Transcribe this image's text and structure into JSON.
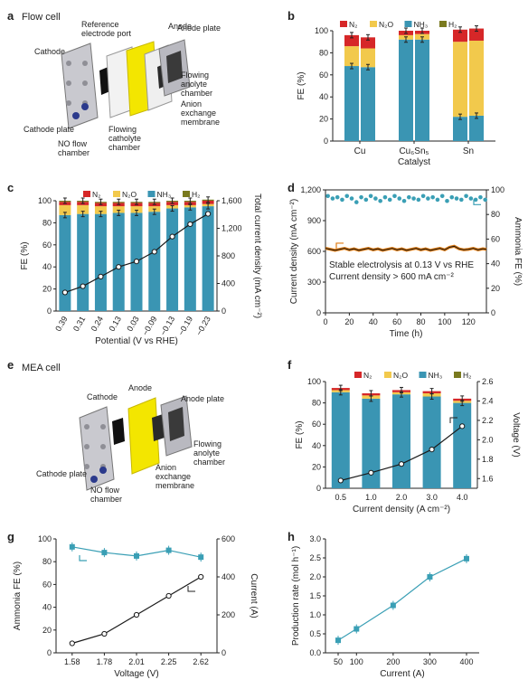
{
  "colors": {
    "n2": "#d62728",
    "n2o": "#f2c94c",
    "nh3": "#3a95b3",
    "h2": "#7a7a1f",
    "line": "#1a1a1a",
    "ammonia_fe": "#3a9fb5",
    "production": "#3a9fb5"
  },
  "panels": {
    "a": {
      "label": "a",
      "title": "Flow cell",
      "callouts": [
        "Reference electrode port",
        "Anode",
        "Anode plate",
        "Cathode",
        "Flowing anolyte chamber",
        "Anion exchange membrane",
        "Cathode plate",
        "NO flow chamber",
        "Flowing catholyte chamber"
      ]
    },
    "b": {
      "label": "b"
    },
    "c": {
      "label": "c"
    },
    "d": {
      "label": "d"
    },
    "e": {
      "label": "e",
      "title": "MEA cell",
      "callouts": [
        "Cathode",
        "Anode",
        "Anode plate",
        "Flowing anolyte chamber",
        "Anion exchange membrane",
        "Cathode plate",
        "NO flow chamber"
      ]
    },
    "f": {
      "label": "f"
    },
    "g": {
      "label": "g"
    },
    "h": {
      "label": "h"
    }
  },
  "legend": {
    "n2": "N₂",
    "n2o": "N₂O",
    "nh3": "NH₃",
    "h2": "H₂"
  },
  "chart_data": [
    {
      "panel": "b",
      "type": "bar",
      "categories": [
        "Cu",
        "Cu₆Sn₅",
        "Sn"
      ],
      "xlabel": "Catalyst",
      "ylabel": "FE (%)",
      "ylim": [
        0,
        100
      ],
      "yticks": [
        0,
        20,
        40,
        60,
        80,
        100
      ],
      "bars_per_category": 2,
      "series": [
        {
          "name": "NH₃",
          "values": [
            [
              68,
              67
            ],
            [
              92,
              92
            ],
            [
              22,
              23
            ]
          ]
        },
        {
          "name": "N₂O",
          "values": [
            [
              18,
              17
            ],
            [
              4,
              5
            ],
            [
              68,
              68
            ]
          ]
        },
        {
          "name": "N₂",
          "values": [
            [
              10,
              10
            ],
            [
              4,
              3
            ],
            [
              11,
              11
            ]
          ]
        },
        {
          "name": "H₂",
          "values": [
            [
              0,
              0
            ],
            [
              0,
              0
            ],
            [
              0,
              0
            ]
          ]
        }
      ]
    },
    {
      "panel": "c",
      "type": "bar",
      "categories": [
        "0.39",
        "0.31",
        "0.24",
        "0.13",
        "0.03",
        "−0.09",
        "−0.13",
        "−0.19",
        "−0.23"
      ],
      "xlabel": "Potential (V vs RHE)",
      "ylabel": "FE (%)",
      "ylabel_right": "Total current density (mA cm⁻²)",
      "ylim": [
        0,
        100
      ],
      "yticks": [
        0,
        20,
        40,
        60,
        80,
        100
      ],
      "ylim_right": [
        0,
        1600
      ],
      "yticks_right": [
        0,
        400,
        800,
        1200,
        1600
      ],
      "series": [
        {
          "name": "NH₃",
          "values": [
            87,
            88,
            88,
            89,
            89,
            90,
            93,
            94,
            95
          ]
        },
        {
          "name": "N₂O",
          "values": [
            9,
            8,
            7,
            6,
            6,
            5,
            3,
            2,
            2
          ]
        },
        {
          "name": "N₂",
          "values": [
            3,
            3,
            3,
            3,
            3,
            3,
            3,
            3,
            3
          ]
        },
        {
          "name": "H₂",
          "values": [
            1,
            1,
            1,
            1,
            1,
            1,
            1,
            1,
            1
          ]
        }
      ],
      "line": {
        "name": "Total current density",
        "values": [
          270,
          360,
          500,
          640,
          720,
          860,
          1080,
          1260,
          1410
        ]
      }
    },
    {
      "panel": "d",
      "type": "scatter",
      "xlabel": "Time (h)",
      "ylabel": "Current density (mA cm⁻²)",
      "ylabel_right": "Ammonia FE (%)",
      "xlim": [
        0,
        135
      ],
      "xticks": [
        0,
        20,
        40,
        60,
        80,
        100,
        120
      ],
      "ylim": [
        0,
        1200
      ],
      "yticks": [
        0,
        300,
        600,
        900,
        1200
      ],
      "ylim_right": [
        0,
        100
      ],
      "yticks_right": [
        0,
        20,
        40,
        60,
        80,
        100
      ],
      "annotations": [
        "Stable electrolysis at 0.13 V vs RHE",
        "Current density > 600 mA cm⁻²"
      ],
      "series": [
        {
          "name": "Ammonia FE",
          "x": [
            2,
            6,
            10,
            14,
            18,
            22,
            26,
            30,
            34,
            38,
            42,
            46,
            50,
            54,
            58,
            62,
            66,
            70,
            74,
            78,
            82,
            86,
            90,
            94,
            98,
            102,
            106,
            110,
            114,
            118,
            122,
            126,
            130,
            134
          ],
          "y": [
            95,
            93,
            94,
            92,
            95,
            93,
            90,
            94,
            92,
            95,
            93,
            91,
            94,
            92,
            95,
            93,
            91,
            94,
            93,
            92,
            95,
            93,
            94,
            92,
            95,
            91,
            94,
            93,
            92,
            95,
            93,
            92,
            94,
            92
          ]
        },
        {
          "name": "Current density",
          "x": [
            0,
            4,
            8,
            12,
            16,
            20,
            24,
            28,
            32,
            36,
            40,
            44,
            48,
            52,
            56,
            60,
            64,
            68,
            72,
            76,
            80,
            84,
            88,
            92,
            96,
            100,
            104,
            108,
            112,
            116,
            120,
            124,
            128,
            132,
            135
          ],
          "y": [
            630,
            620,
            610,
            620,
            630,
            615,
            625,
            610,
            620,
            630,
            615,
            625,
            610,
            620,
            630,
            615,
            625,
            610,
            620,
            630,
            615,
            625,
            610,
            620,
            630,
            615,
            640,
            650,
            625,
            615,
            620,
            630,
            615,
            625,
            620
          ]
        }
      ]
    },
    {
      "panel": "f",
      "type": "bar",
      "categories": [
        "0.5",
        "1.0",
        "2.0",
        "3.0",
        "4.0"
      ],
      "xlabel": "Current density (A cm⁻²)",
      "ylabel": "FE (%)",
      "ylabel_right": "Voltage (V)",
      "ylim": [
        0,
        100
      ],
      "yticks": [
        0,
        20,
        40,
        60,
        80,
        100
      ],
      "ylim_right": [
        1.5,
        2.6
      ],
      "yticks_right": [
        1.6,
        1.8,
        2.0,
        2.2,
        2.4,
        2.6
      ],
      "series": [
        {
          "name": "NH₃",
          "values": [
            90,
            84,
            88,
            86,
            80
          ]
        },
        {
          "name": "N₂O",
          "values": [
            2,
            3,
            2,
            3,
            2
          ]
        },
        {
          "name": "N₂",
          "values": [
            2,
            2,
            2,
            2,
            2
          ]
        },
        {
          "name": "H₂",
          "values": [
            0,
            0,
            0,
            0,
            0
          ]
        }
      ],
      "line": {
        "name": "Voltage",
        "values": [
          1.58,
          1.66,
          1.75,
          1.9,
          2.14
        ]
      }
    },
    {
      "panel": "g",
      "type": "line",
      "xlabel": "Voltage (V)",
      "ylabel": "Ammonia FE (%)",
      "ylabel_right": "Current (A)",
      "categories": [
        "1.58",
        "1.78",
        "2.01",
        "2.25",
        "2.62"
      ],
      "ylim": [
        0,
        100
      ],
      "yticks": [
        0,
        20,
        40,
        60,
        80,
        100
      ],
      "ylim_right": [
        0,
        600
      ],
      "yticks_right": [
        0,
        200,
        400,
        600
      ],
      "series": [
        {
          "name": "Ammonia FE",
          "values": [
            93,
            88,
            85,
            90,
            84
          ]
        },
        {
          "name": "Current",
          "values": [
            50,
            100,
            200,
            300,
            400
          ]
        }
      ]
    },
    {
      "panel": "h",
      "type": "line",
      "xlabel": "Current (A)",
      "ylabel": "Production rate (mol h⁻¹)",
      "categories": [
        "50",
        "100",
        "200",
        "300",
        "400"
      ],
      "ylim": [
        0,
        3.0
      ],
      "yticks": [
        0,
        0.5,
        1.0,
        1.5,
        2.0,
        2.5,
        3.0
      ],
      "series": [
        {
          "name": "Production rate",
          "values": [
            0.33,
            0.63,
            1.25,
            2.0,
            2.48
          ]
        }
      ]
    }
  ]
}
